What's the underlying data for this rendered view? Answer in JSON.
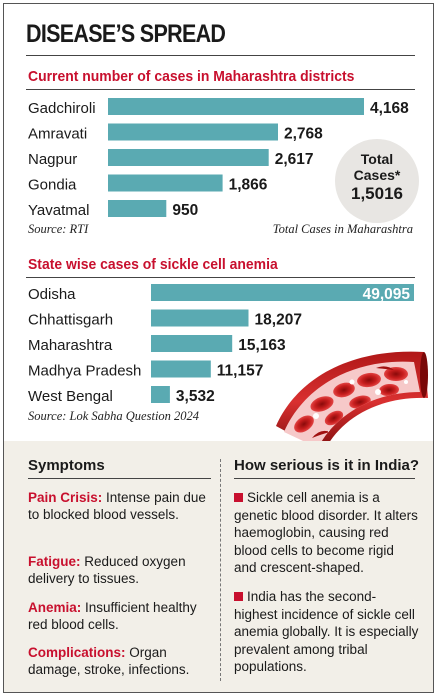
{
  "title": "DISEASE’S SPREAD",
  "chart_data": [
    {
      "type": "bar",
      "orientation": "horizontal",
      "title": "Current number of cases in Maharashtra districts",
      "categories": [
        "Gadchiroli",
        "Amravati",
        "Nagpur",
        "Gondia",
        "Yavatmal"
      ],
      "values": [
        4168,
        2768,
        2617,
        1866,
        950
      ],
      "value_labels": [
        "4,168",
        "2,768",
        "2,617",
        "1,866",
        "950"
      ],
      "bar_color": "#5aaab2",
      "source": "Source: RTI",
      "total_note": "Total Cases in Maharashtra",
      "total_bubble": {
        "line1": "Total",
        "line2": "Cases*",
        "value": "1,5016"
      }
    },
    {
      "type": "bar",
      "orientation": "horizontal",
      "title": "State wise cases of sickle cell anemia",
      "categories": [
        "Odisha",
        "Chhattisgarh",
        "Maharashtra",
        "Madhya Pradesh",
        "West Bengal"
      ],
      "values": [
        49095,
        18207,
        15163,
        11157,
        3532
      ],
      "value_labels": [
        "49,095",
        "18,207",
        "15,163",
        "11,157",
        "3,532"
      ],
      "bar_color": "#5aaab2",
      "source": "Source: Lok Sabha Question 2024"
    }
  ],
  "symptoms": {
    "heading": "Symptoms",
    "items": [
      {
        "key": "Pain Crisis:",
        "text": " Intense pain due to blocked blood vessels."
      },
      {
        "key": "Fatigue:",
        "text": " Reduced oxygen delivery to tissues."
      },
      {
        "key": "Anemia:",
        "text": " Insufficient healthy red blood cells."
      },
      {
        "key": "Complications:",
        "text": " Organ damage, stroke, infections."
      }
    ]
  },
  "serious": {
    "heading": "How serious is it in India?",
    "paragraphs": [
      "Sickle cell anemia is a genetic blood disorder. It alters haemoglobin, causing red blood cells to become rigid and crescent-shaped.",
      "India has the second-highest incidence of sickle cell anemia globally. It is especially prevalent among tribal populations."
    ]
  },
  "colors": {
    "accent": "#c8102e",
    "bar": "#5aaab2",
    "panel": "#f2efe8",
    "bubble": "#e8e6e3"
  }
}
